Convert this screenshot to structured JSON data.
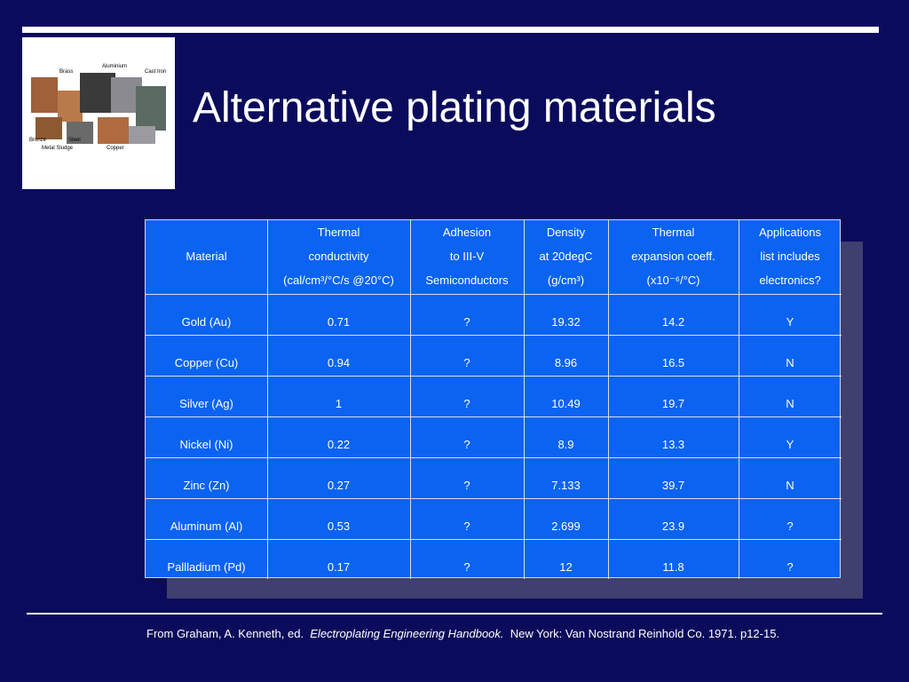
{
  "title": "Alternative plating materials",
  "image_labels": [
    "Brass",
    "Aluminium",
    "Cast Iron",
    "Bronze",
    "Steel",
    "Metal Sludge",
    "Copper"
  ],
  "table": {
    "header": [
      [
        "",
        "Material",
        ""
      ],
      [
        "Thermal",
        "conductivity",
        "(cal/cm³/°C/s @20°C)"
      ],
      [
        "Adhesion",
        "to III-V",
        "Semiconductors"
      ],
      [
        "Density",
        "at 20degC",
        "(g/cm³)"
      ],
      [
        "Thermal",
        "expansion coeff.",
        "(x10⁻⁶/°C)"
      ],
      [
        "Applications",
        "list includes",
        "electronics?"
      ]
    ],
    "rows": [
      [
        "Gold (Au)",
        "0.71",
        "?",
        "19.32",
        "14.2",
        "Y"
      ],
      [
        "Copper (Cu)",
        "0.94",
        "?",
        "8.96",
        "16.5",
        "N"
      ],
      [
        "Silver (Ag)",
        "1",
        "?",
        "10.49",
        "19.7",
        "N"
      ],
      [
        "Nickel (Ni)",
        "0.22",
        "?",
        "8.9",
        "13.3",
        "Y"
      ],
      [
        "Zinc (Zn)",
        "0.27",
        "?",
        "7.133",
        "39.7",
        "N"
      ],
      [
        "Aluminum (Al)",
        "0.53",
        "?",
        "2.699",
        "23.9",
        "?"
      ],
      [
        "Pallladium (Pd)",
        "0.17",
        "?",
        "12",
        "11.8",
        "?"
      ]
    ]
  },
  "citation": {
    "before": "From Graham, A. Kenneth, ed.",
    "italic": "Electroplating Engineering Handbook.",
    "after": "New York: Van Nostrand Reinhold Co.  1971.  p12-15."
  }
}
